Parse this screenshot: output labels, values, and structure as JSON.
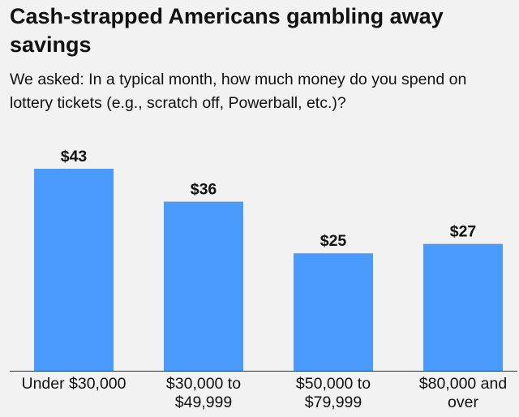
{
  "chart_data": {
    "type": "bar",
    "title": "Cash-strapped Americans gambling away savings",
    "subtitle": "We asked: In a typical month, how much money do you spend on lottery tickets (e.g., scratch off, Powerball, etc.)?",
    "categories": [
      [
        "Under $30,000"
      ],
      [
        "$30,000 to",
        "$49,999"
      ],
      [
        "$50,000 to",
        "$79,999"
      ],
      [
        "$80,000 and",
        "over"
      ]
    ],
    "values": [
      43,
      36,
      25,
      27
    ],
    "value_labels": [
      "$43",
      "$36",
      "$25",
      "$27"
    ],
    "xlabel": "",
    "ylabel": "",
    "ylim": [
      0,
      43
    ],
    "grid": false,
    "legend": "none",
    "colors": {
      "bar": "#4a9bfd",
      "axis": "#333333",
      "background": "#f2f2f2",
      "text": "#111111"
    }
  }
}
